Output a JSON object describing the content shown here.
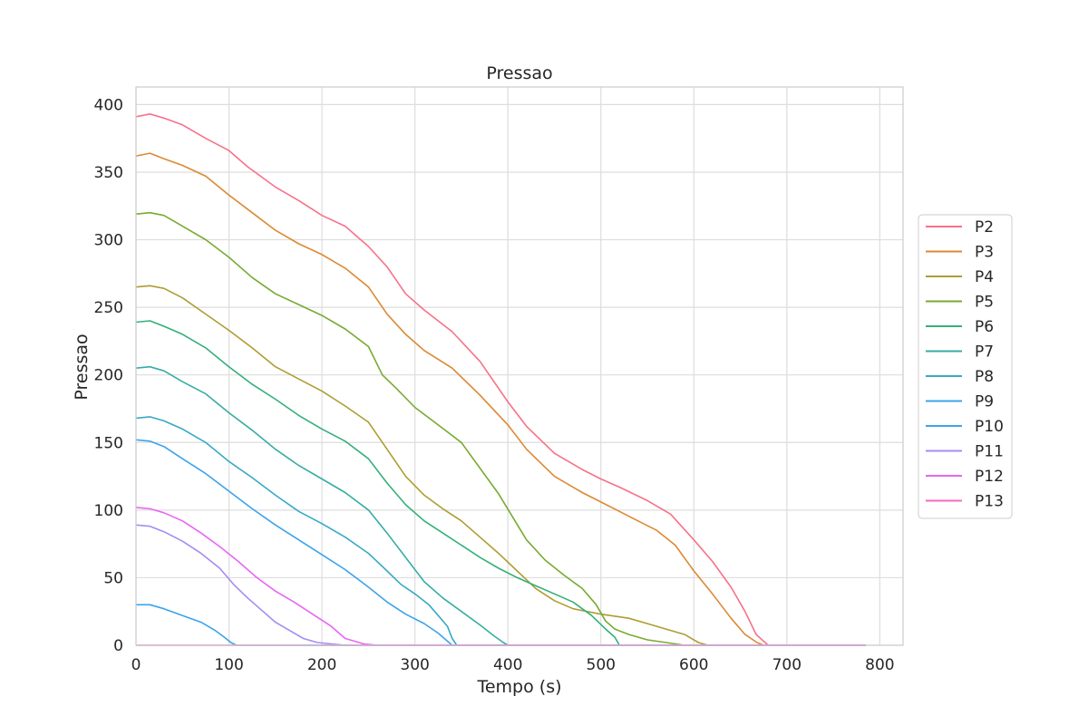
{
  "chart_data": {
    "type": "line",
    "title": "Pressao",
    "xlabel": "Tempo (s)",
    "ylabel": "Pressao",
    "xlim": [
      0,
      825
    ],
    "ylim": [
      0,
      413
    ],
    "xticks": [
      0,
      100,
      200,
      300,
      400,
      500,
      600,
      700,
      800
    ],
    "yticks": [
      0,
      50,
      100,
      150,
      200,
      250,
      300,
      350,
      400
    ],
    "grid": true,
    "legend_position": "right",
    "series": [
      {
        "name": "P2",
        "color": "#f77189",
        "points": [
          [
            0,
            391
          ],
          [
            15,
            393
          ],
          [
            30,
            390
          ],
          [
            50,
            385
          ],
          [
            75,
            375
          ],
          [
            100,
            366
          ],
          [
            120,
            354
          ],
          [
            150,
            339
          ],
          [
            175,
            329
          ],
          [
            200,
            318
          ],
          [
            225,
            310
          ],
          [
            250,
            295
          ],
          [
            270,
            280
          ],
          [
            290,
            260
          ],
          [
            310,
            248
          ],
          [
            340,
            232
          ],
          [
            370,
            210
          ],
          [
            400,
            180
          ],
          [
            420,
            162
          ],
          [
            450,
            142
          ],
          [
            480,
            130
          ],
          [
            500,
            123
          ],
          [
            520,
            117
          ],
          [
            550,
            107
          ],
          [
            575,
            97
          ],
          [
            600,
            78
          ],
          [
            620,
            62
          ],
          [
            640,
            43
          ],
          [
            655,
            25
          ],
          [
            667,
            8
          ],
          [
            675,
            3
          ],
          [
            680,
            0
          ],
          [
            785,
            0
          ]
        ]
      },
      {
        "name": "P3",
        "color": "#dc8932",
        "points": [
          [
            0,
            362
          ],
          [
            15,
            364
          ],
          [
            30,
            360
          ],
          [
            50,
            355
          ],
          [
            75,
            347
          ],
          [
            100,
            333
          ],
          [
            125,
            320
          ],
          [
            150,
            307
          ],
          [
            175,
            297
          ],
          [
            200,
            289
          ],
          [
            225,
            279
          ],
          [
            250,
            265
          ],
          [
            270,
            245
          ],
          [
            290,
            230
          ],
          [
            310,
            218
          ],
          [
            340,
            205
          ],
          [
            370,
            185
          ],
          [
            400,
            163
          ],
          [
            420,
            145
          ],
          [
            450,
            125
          ],
          [
            480,
            113
          ],
          [
            500,
            106
          ],
          [
            520,
            99
          ],
          [
            540,
            92
          ],
          [
            560,
            85
          ],
          [
            580,
            74
          ],
          [
            600,
            55
          ],
          [
            620,
            38
          ],
          [
            640,
            20
          ],
          [
            655,
            8
          ],
          [
            668,
            2
          ],
          [
            675,
            0
          ],
          [
            785,
            0
          ]
        ]
      },
      {
        "name": "P4",
        "color": "#ae9d31",
        "points": [
          [
            0,
            265
          ],
          [
            15,
            266
          ],
          [
            30,
            264
          ],
          [
            50,
            257
          ],
          [
            75,
            245
          ],
          [
            100,
            233
          ],
          [
            125,
            220
          ],
          [
            150,
            206
          ],
          [
            175,
            197
          ],
          [
            200,
            188
          ],
          [
            225,
            177
          ],
          [
            250,
            165
          ],
          [
            270,
            145
          ],
          [
            290,
            125
          ],
          [
            310,
            111
          ],
          [
            330,
            101
          ],
          [
            350,
            92
          ],
          [
            370,
            80
          ],
          [
            390,
            68
          ],
          [
            410,
            55
          ],
          [
            430,
            42
          ],
          [
            450,
            33
          ],
          [
            470,
            27
          ],
          [
            500,
            23
          ],
          [
            530,
            20
          ],
          [
            550,
            16
          ],
          [
            570,
            12
          ],
          [
            590,
            8
          ],
          [
            605,
            2
          ],
          [
            615,
            0
          ],
          [
            785,
            0
          ]
        ]
      },
      {
        "name": "P5",
        "color": "#77ab31",
        "points": [
          [
            0,
            319
          ],
          [
            15,
            320
          ],
          [
            30,
            318
          ],
          [
            50,
            310
          ],
          [
            75,
            300
          ],
          [
            100,
            287
          ],
          [
            125,
            272
          ],
          [
            150,
            260
          ],
          [
            175,
            252
          ],
          [
            200,
            244
          ],
          [
            225,
            234
          ],
          [
            250,
            221
          ],
          [
            265,
            200
          ],
          [
            280,
            190
          ],
          [
            300,
            176
          ],
          [
            325,
            163
          ],
          [
            350,
            150
          ],
          [
            370,
            131
          ],
          [
            390,
            112
          ],
          [
            405,
            95
          ],
          [
            420,
            78
          ],
          [
            440,
            63
          ],
          [
            460,
            52
          ],
          [
            480,
            42
          ],
          [
            495,
            30
          ],
          [
            505,
            18
          ],
          [
            515,
            12
          ],
          [
            530,
            8
          ],
          [
            550,
            4
          ],
          [
            570,
            2
          ],
          [
            590,
            0
          ],
          [
            785,
            0
          ]
        ]
      },
      {
        "name": "P6",
        "color": "#33b07a",
        "points": [
          [
            0,
            239
          ],
          [
            15,
            240
          ],
          [
            30,
            236
          ],
          [
            50,
            230
          ],
          [
            75,
            220
          ],
          [
            100,
            206
          ],
          [
            125,
            193
          ],
          [
            150,
            182
          ],
          [
            175,
            170
          ],
          [
            200,
            160
          ],
          [
            225,
            151
          ],
          [
            250,
            138
          ],
          [
            270,
            120
          ],
          [
            290,
            104
          ],
          [
            310,
            92
          ],
          [
            330,
            83
          ],
          [
            350,
            74
          ],
          [
            370,
            65
          ],
          [
            390,
            57
          ],
          [
            410,
            50
          ],
          [
            430,
            44
          ],
          [
            450,
            38
          ],
          [
            470,
            32
          ],
          [
            490,
            22
          ],
          [
            505,
            12
          ],
          [
            515,
            6
          ],
          [
            520,
            0
          ],
          [
            785,
            0
          ]
        ]
      },
      {
        "name": "P7",
        "color": "#36ada4",
        "points": [
          [
            0,
            205
          ],
          [
            15,
            206
          ],
          [
            30,
            203
          ],
          [
            50,
            195
          ],
          [
            75,
            186
          ],
          [
            100,
            172
          ],
          [
            125,
            159
          ],
          [
            150,
            145
          ],
          [
            175,
            133
          ],
          [
            200,
            123
          ],
          [
            225,
            113
          ],
          [
            250,
            100
          ],
          [
            270,
            83
          ],
          [
            290,
            65
          ],
          [
            310,
            47
          ],
          [
            330,
            35
          ],
          [
            350,
            25
          ],
          [
            370,
            15
          ],
          [
            385,
            7
          ],
          [
            395,
            2
          ],
          [
            400,
            0
          ],
          [
            785,
            0
          ]
        ]
      },
      {
        "name": "P8",
        "color": "#38a9c5",
        "points": [
          [
            0,
            168
          ],
          [
            15,
            169
          ],
          [
            30,
            166
          ],
          [
            50,
            160
          ],
          [
            75,
            150
          ],
          [
            100,
            136
          ],
          [
            125,
            124
          ],
          [
            150,
            111
          ],
          [
            175,
            99
          ],
          [
            200,
            90
          ],
          [
            225,
            80
          ],
          [
            250,
            68
          ],
          [
            270,
            55
          ],
          [
            285,
            45
          ],
          [
            300,
            38
          ],
          [
            315,
            30
          ],
          [
            325,
            22
          ],
          [
            335,
            14
          ],
          [
            340,
            5
          ],
          [
            345,
            0
          ],
          [
            785,
            0
          ]
        ]
      },
      {
        "name": "P9",
        "color": "#3ba3ec",
        "points": [
          [
            0,
            152
          ],
          [
            15,
            151
          ],
          [
            30,
            147
          ],
          [
            50,
            138
          ],
          [
            75,
            127
          ],
          [
            100,
            114
          ],
          [
            125,
            101
          ],
          [
            150,
            89
          ],
          [
            175,
            78
          ],
          [
            200,
            67
          ],
          [
            225,
            56
          ],
          [
            250,
            43
          ],
          [
            270,
            32
          ],
          [
            290,
            23
          ],
          [
            310,
            16
          ],
          [
            325,
            9
          ],
          [
            335,
            3
          ],
          [
            340,
            0
          ],
          [
            785,
            0
          ]
        ]
      },
      {
        "name": "P10",
        "color": "#3ba3ec",
        "points": [
          [
            0,
            30
          ],
          [
            15,
            30
          ],
          [
            30,
            27
          ],
          [
            50,
            22
          ],
          [
            70,
            17
          ],
          [
            85,
            11
          ],
          [
            95,
            6
          ],
          [
            102,
            2
          ],
          [
            108,
            0
          ],
          [
            785,
            0
          ]
        ]
      },
      {
        "name": "P11",
        "color": "#a48cf4",
        "points": [
          [
            0,
            89
          ],
          [
            15,
            88
          ],
          [
            30,
            84
          ],
          [
            50,
            77
          ],
          [
            70,
            68
          ],
          [
            90,
            57
          ],
          [
            105,
            45
          ],
          [
            120,
            35
          ],
          [
            135,
            26
          ],
          [
            150,
            17
          ],
          [
            165,
            11
          ],
          [
            180,
            5
          ],
          [
            195,
            2
          ],
          [
            210,
            1
          ],
          [
            225,
            0
          ],
          [
            785,
            0
          ]
        ]
      },
      {
        "name": "P12",
        "color": "#e866f4",
        "points": [
          [
            0,
            102
          ],
          [
            15,
            101
          ],
          [
            30,
            98
          ],
          [
            50,
            92
          ],
          [
            70,
            83
          ],
          [
            90,
            73
          ],
          [
            110,
            62
          ],
          [
            130,
            50
          ],
          [
            150,
            40
          ],
          [
            170,
            32
          ],
          [
            190,
            23
          ],
          [
            210,
            14
          ],
          [
            225,
            5
          ],
          [
            235,
            3
          ],
          [
            245,
            1
          ],
          [
            260,
            0
          ],
          [
            785,
            0
          ]
        ]
      },
      {
        "name": "P13",
        "color": "#f668c2",
        "points": [
          [
            0,
            0
          ],
          [
            785,
            0
          ]
        ]
      }
    ]
  }
}
